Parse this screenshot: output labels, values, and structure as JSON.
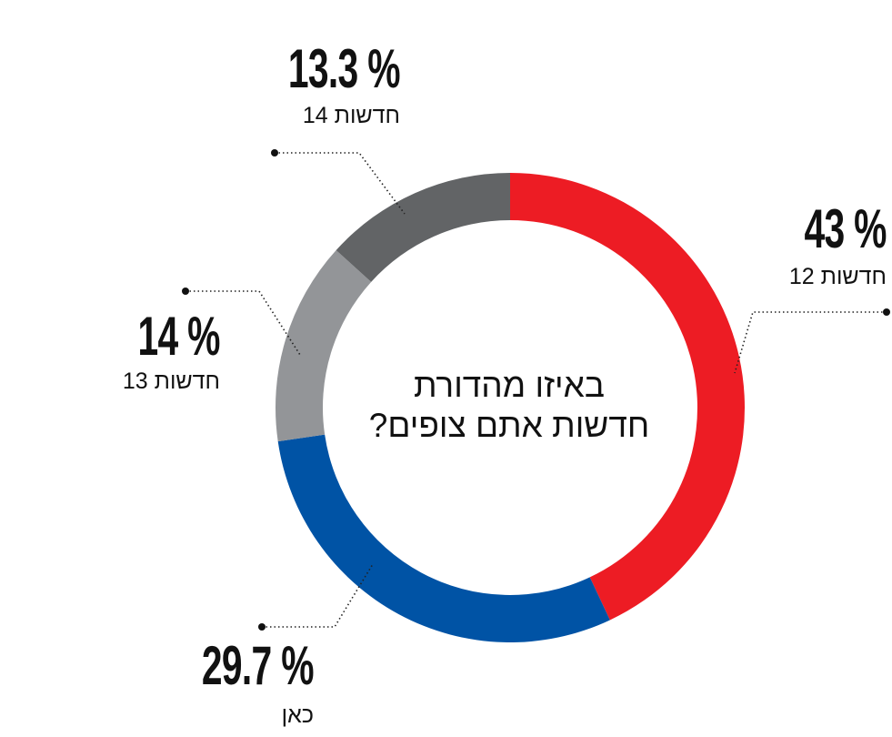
{
  "chart_data": {
    "type": "pie",
    "donut": true,
    "title": "באיזו מהדורת חדשות אתם צופים?",
    "title_lines": [
      "באיזו מהדורת",
      "חדשות אתם צופים?"
    ],
    "start": "12 o'clock, clockwise",
    "slices": [
      {
        "name": "חדשות 12",
        "value": 43,
        "label": "43 %",
        "color": "#ed1c24"
      },
      {
        "name": "כאן",
        "value": 29.7,
        "label": "29.7 %",
        "color": "#0053a5"
      },
      {
        "name": "חדשות 13",
        "value": 14,
        "label": "14 %",
        "color": "#939598"
      },
      {
        "name": "חדשות 14",
        "value": 13.3,
        "label": "13.3 %",
        "color": "#626466"
      }
    ]
  }
}
